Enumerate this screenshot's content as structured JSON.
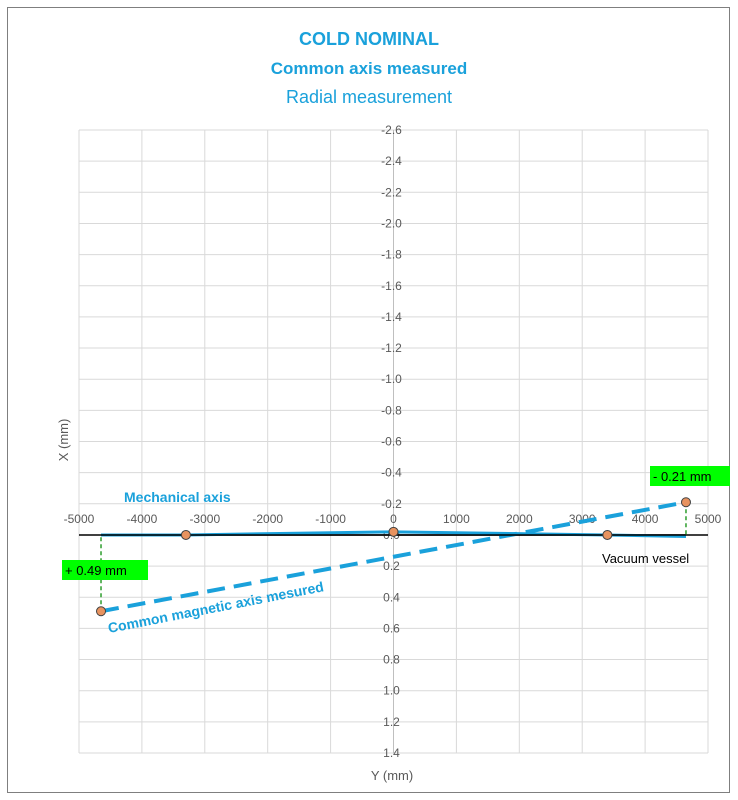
{
  "chart_data": {
    "type": "line",
    "title": "COLD NOMINAL",
    "subtitle": "Common axis measured",
    "subtitle2": "Radial measurement",
    "xlabel": "Y (mm)",
    "ylabel": "X (mm)",
    "xlim": [
      -5000,
      5000
    ],
    "ylim": [
      -2.6,
      1.4
    ],
    "y_reversed": true,
    "grid": true,
    "x_ticks": [
      -5000,
      -4000,
      -3000,
      -2000,
      -1000,
      0,
      1000,
      2000,
      3000,
      4000,
      5000
    ],
    "x_tick_labels": [
      "-5000",
      "-4000",
      "-3000",
      "-2000",
      "-1000",
      "0",
      "1000",
      "2000",
      "3000",
      "4000",
      "5000"
    ],
    "y_ticks": [
      -2.6,
      -2.4,
      -2.2,
      -2.0,
      -1.8,
      -1.6,
      -1.4,
      -1.2,
      -1.0,
      -0.8,
      -0.6,
      -0.4,
      -0.2,
      0.0,
      0.2,
      0.4,
      0.6,
      0.8,
      1.0,
      1.2,
      1.4
    ],
    "y_tick_labels": [
      "-2.6",
      "-2.4",
      "-2.2",
      "-2.0",
      "-1.8",
      "-1.6",
      "-1.4",
      "-1.2",
      "-1.0",
      "-0.8",
      "-0.6",
      "-0.4",
      "-0.2",
      "0.0",
      "0.2",
      "0.4",
      "0.6",
      "0.8",
      "1.0",
      "1.2",
      "1.4"
    ],
    "series": [
      {
        "name": "Mechanical axis",
        "style": "solid",
        "color": "#1aa1db",
        "x": [
          -4650,
          -3300,
          0,
          3400,
          4650
        ],
        "y": [
          0.0,
          0.0,
          -0.02,
          0.0,
          0.01
        ]
      },
      {
        "name": "Common magnetic axis mesured",
        "style": "dashed",
        "color": "#1aa1db",
        "x": [
          -4650,
          4650
        ],
        "y": [
          0.49,
          -0.21
        ]
      },
      {
        "name": "Vacuum vessel",
        "style": "solid",
        "color": "#000000",
        "x": [
          -4650,
          4650
        ],
        "y": [
          0.0,
          0.0
        ]
      }
    ],
    "points": {
      "color": "#e8935f",
      "x": [
        -4650,
        -3300,
        0,
        3400,
        4650
      ],
      "y": [
        0.49,
        0.0,
        -0.02,
        0.0,
        -0.21
      ]
    },
    "annotations": {
      "left_offset": "+ 0.49 mm",
      "right_offset": "- 0.21 mm",
      "mechanical_axis": "Mechanical axis",
      "magnetic_axis": "Common magnetic axis mesured",
      "vacuum_vessel": "Vacuum vessel"
    },
    "colors": {
      "accent": "#1aa1db",
      "point": "#e8935f",
      "label_bg": "#00ff00",
      "guide": "#2e9e2e",
      "grid": "#d9d9d9"
    }
  }
}
